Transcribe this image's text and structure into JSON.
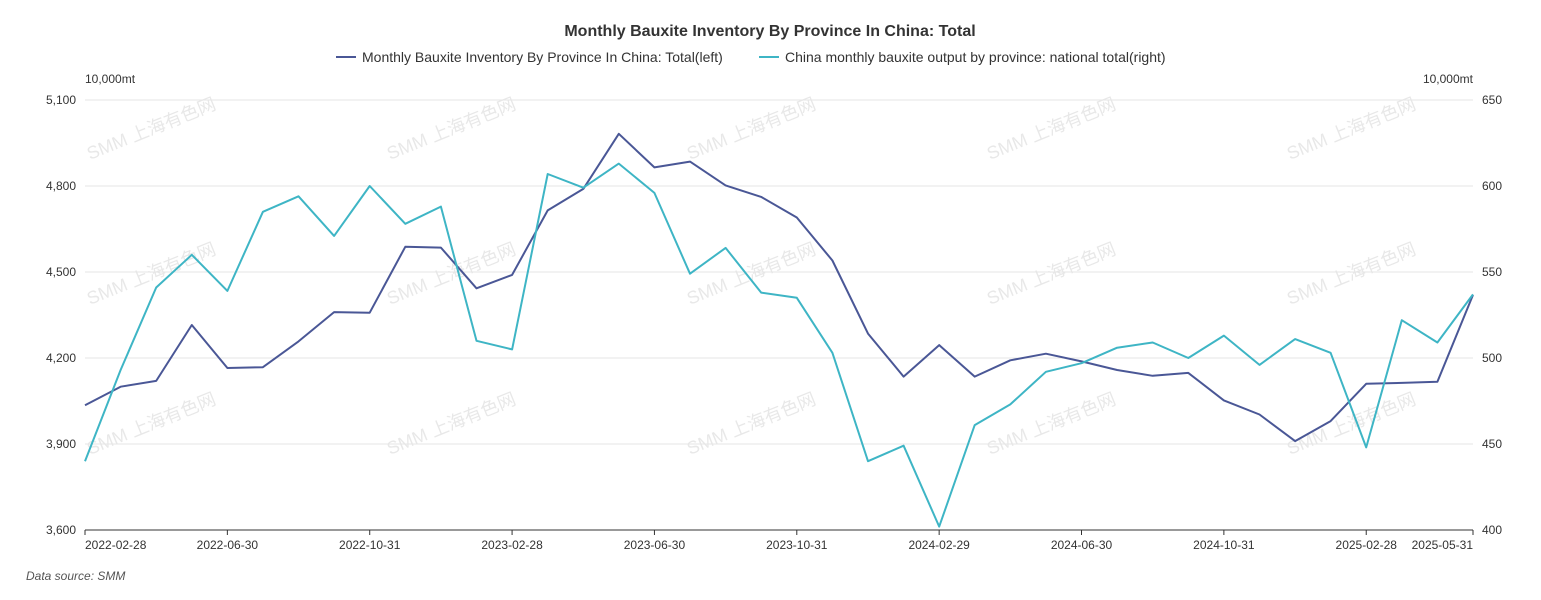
{
  "chart_data": {
    "type": "line",
    "title": "Monthly Bauxite Inventory By Province In China: Total",
    "left_unit": "10,000mt",
    "right_unit": "10,000mt",
    "source": "Data source:  SMM",
    "watermark": "SMM 上海有色网",
    "ylim_left": [
      3600,
      5100
    ],
    "ylim_right": [
      400,
      650
    ],
    "yticks_left": [
      "3,600",
      "3,900",
      "4,200",
      "4,500",
      "4,800",
      "5,100"
    ],
    "yticks_right": [
      "400",
      "450",
      "500",
      "550",
      "600",
      "650"
    ],
    "x": [
      "2022-02-28",
      "2022-03-31",
      "2022-04-30",
      "2022-05-31",
      "2022-06-30",
      "2022-07-31",
      "2022-08-31",
      "2022-09-30",
      "2022-10-31",
      "2022-11-30",
      "2022-12-31",
      "2023-01-31",
      "2023-02-28",
      "2023-03-31",
      "2023-04-30",
      "2023-05-31",
      "2023-06-30",
      "2023-07-31",
      "2023-08-31",
      "2023-09-30",
      "2023-10-31",
      "2023-11-30",
      "2023-12-31",
      "2024-01-31",
      "2024-02-29",
      "2024-03-31",
      "2024-04-30",
      "2024-05-31",
      "2024-06-30",
      "2024-07-31",
      "2024-08-31",
      "2024-09-30",
      "2024-10-31",
      "2024-11-30",
      "2024-12-31",
      "2025-01-31",
      "2025-02-28",
      "2025-03-31",
      "2025-04-30",
      "2025-05-31"
    ],
    "xtick_labels": [
      "2022-02-28",
      "2022-06-30",
      "2022-10-31",
      "2023-02-28",
      "2023-06-30",
      "2023-10-31",
      "2024-02-29",
      "2024-06-30",
      "2024-10-31",
      "2025-02-28",
      "2025-05-31"
    ],
    "xtick_index": [
      0,
      4,
      8,
      12,
      16,
      20,
      24,
      28,
      32,
      36,
      39
    ],
    "series": [
      {
        "name": "Monthly Bauxite Inventory By Province In China: Total(left)",
        "axis": "left",
        "color": "#4a5796",
        "values": [
          4035,
          4100,
          4120,
          4315,
          4165,
          4168,
          4258,
          4360,
          4358,
          4588,
          4585,
          4443,
          4490,
          4715,
          4790,
          4982,
          4865,
          4885,
          4802,
          4762,
          4690,
          4540,
          4285,
          4135,
          4245,
          4135,
          4192,
          4215,
          4188,
          4158,
          4138,
          4148,
          4052,
          4003,
          3910,
          3980,
          4110,
          4113,
          4117,
          4420
        ]
      },
      {
        "name": "China monthly bauxite output by province: national total(right)",
        "axis": "right",
        "color": "#3eb5c5",
        "values": [
          440,
          493,
          541,
          560,
          539,
          585,
          594,
          571,
          600,
          578,
          588,
          510,
          505,
          607,
          599,
          613,
          596,
          549,
          564,
          538,
          535,
          503,
          440,
          449,
          402,
          461,
          473,
          492,
          497,
          506,
          509,
          500,
          513,
          496,
          511,
          503,
          448,
          522,
          509,
          537
        ]
      }
    ]
  }
}
